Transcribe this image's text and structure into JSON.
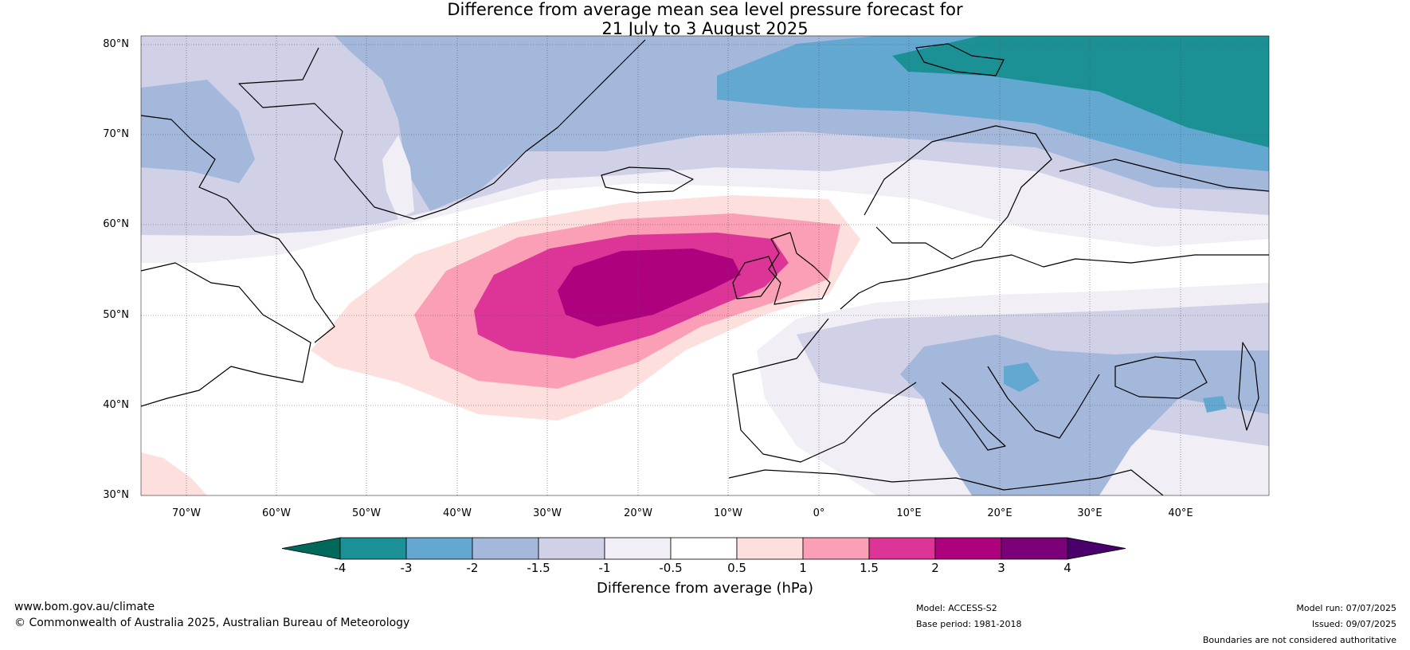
{
  "title": {
    "line1": "Difference from average mean sea level pressure forecast for",
    "line2": "21 July to 3 August 2025"
  },
  "axes": {
    "lat_labels": [
      "80°N",
      "70°N",
      "60°N",
      "50°N",
      "40°N",
      "30°N"
    ],
    "lon_labels": [
      "70°W",
      "60°W",
      "50°W",
      "40°W",
      "30°W",
      "20°W",
      "10°W",
      "0°",
      "10°E",
      "20°E",
      "30°E",
      "40°E"
    ]
  },
  "colorbar": {
    "ticks": [
      "-4",
      "-3",
      "-2",
      "-1.5",
      "-1",
      "-0.5",
      "0.5",
      "1",
      "1.5",
      "2",
      "3",
      "4"
    ],
    "colors": [
      "#00695c",
      "#1b9196",
      "#62a8d1",
      "#a4b8dc",
      "#d0d0e6",
      "#f1eef5",
      "#ffffff",
      "#fde0dd",
      "#fa9fb5",
      "#dd3497",
      "#ae017e",
      "#7a0177",
      "#49006a"
    ],
    "title": "Difference from average (hPa)"
  },
  "footer": {
    "website": "www.bom.gov.au/climate",
    "copyright": "© Commonwealth of Australia 2025, Australian Bureau of Meteorology",
    "model": "Model: ACCESS-S2",
    "base_period": "Base period: 1981-2018",
    "model_run": "Model run: 07/07/2025",
    "issued": "Issued: 09/07/2025",
    "disclaimer": "Boundaries are not considered authoritative"
  }
}
